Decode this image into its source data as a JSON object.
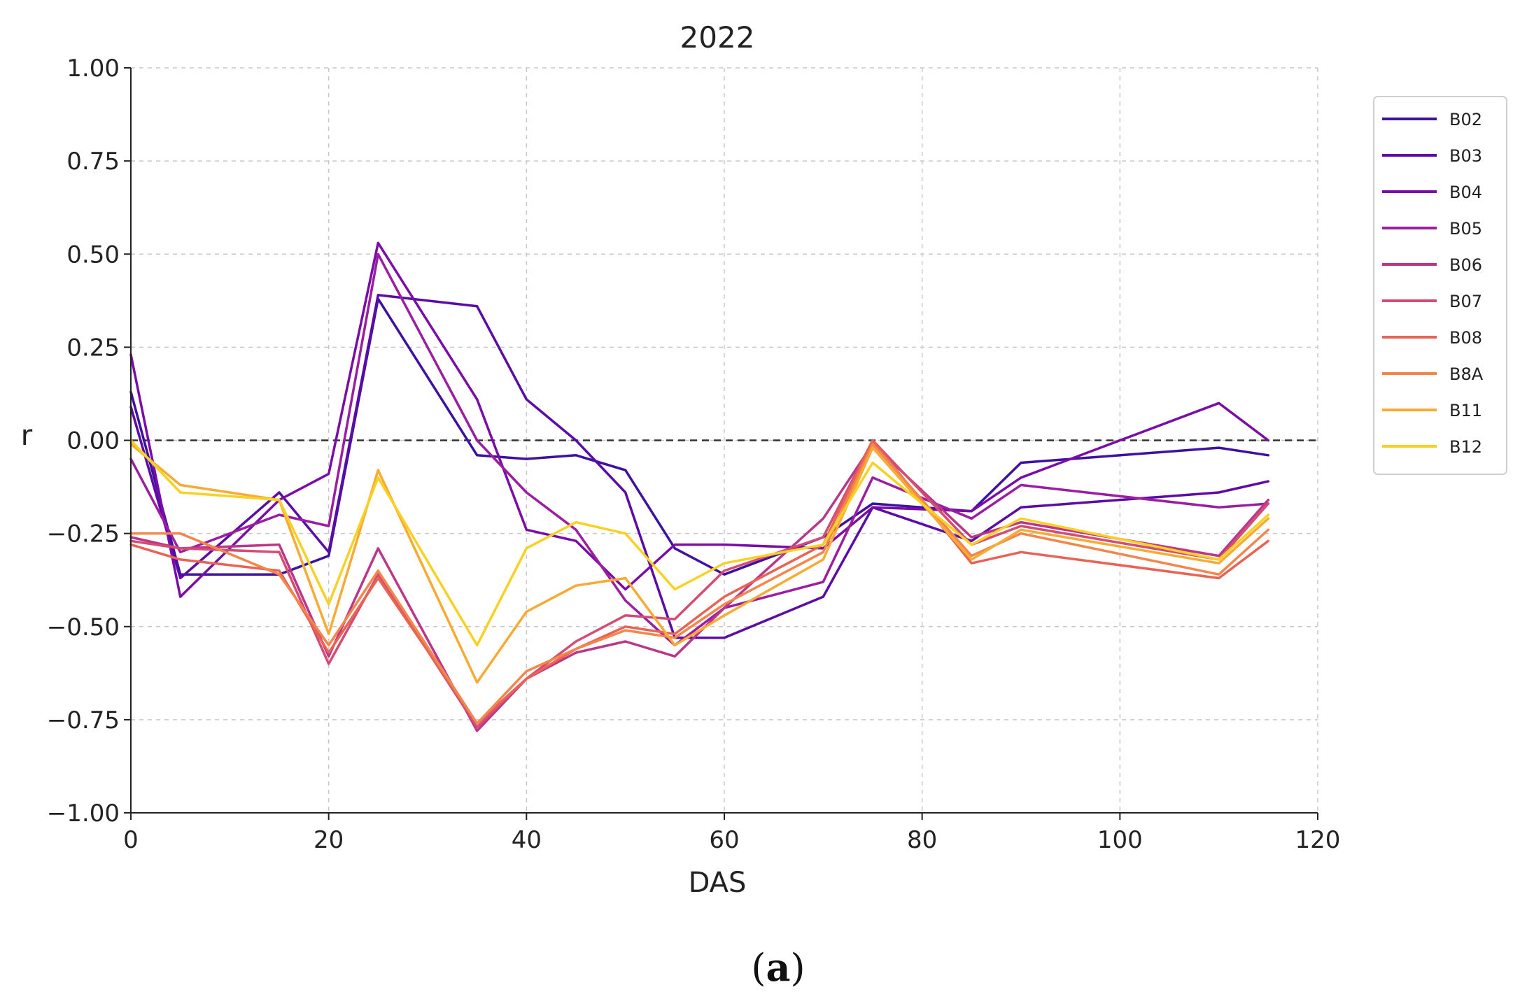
{
  "chart_data": {
    "type": "line",
    "title": "2022",
    "xlabel": "DAS",
    "ylabel": "r",
    "xlim": [
      0,
      120
    ],
    "ylim": [
      -1.0,
      1.0
    ],
    "xticks": [
      "0",
      "20",
      "40",
      "60",
      "80",
      "100",
      "120"
    ],
    "yticks": [
      "−1.00",
      "−0.75",
      "−0.50",
      "−0.25",
      "0.00",
      "0.25",
      "0.50",
      "0.75",
      "1.00"
    ],
    "xtick_values": [
      0,
      20,
      40,
      60,
      80,
      100,
      120
    ],
    "ytick_values": [
      -1.0,
      -0.75,
      -0.5,
      -0.25,
      0.0,
      0.25,
      0.5,
      0.75,
      1.0
    ],
    "grid": true,
    "reference_line_y": 0.0,
    "legend_position": "upper-right-outside",
    "x": [
      0,
      5,
      15,
      20,
      25,
      35,
      40,
      45,
      50,
      55,
      60,
      70,
      75,
      85,
      90,
      110,
      115
    ],
    "series": [
      {
        "name": "B02",
        "color": "#3d12a0",
        "values": [
          0.13,
          -0.36,
          -0.36,
          -0.31,
          0.38,
          -0.04,
          -0.05,
          -0.04,
          -0.08,
          -0.29,
          -0.36,
          -0.26,
          -0.17,
          -0.19,
          -0.06,
          -0.02,
          -0.04
        ]
      },
      {
        "name": "B03",
        "color": "#5c0ca6",
        "values": [
          0.09,
          -0.37,
          -0.14,
          -0.3,
          0.39,
          0.36,
          0.11,
          0.0,
          -0.14,
          -0.53,
          -0.53,
          -0.42,
          -0.18,
          -0.27,
          -0.18,
          -0.14,
          -0.11
        ]
      },
      {
        "name": "B04",
        "color": "#7a0da7",
        "values": [
          0.23,
          -0.42,
          -0.16,
          -0.09,
          0.53,
          0.11,
          -0.24,
          -0.27,
          -0.4,
          -0.28,
          -0.28,
          -0.29,
          -0.18,
          -0.19,
          -0.1,
          0.1,
          0.0
        ]
      },
      {
        "name": "B05",
        "color": "#9c1ea0",
        "values": [
          -0.05,
          -0.3,
          -0.2,
          -0.23,
          0.5,
          0.0,
          -0.14,
          -0.24,
          -0.43,
          -0.55,
          -0.45,
          -0.38,
          -0.1,
          -0.21,
          -0.12,
          -0.18,
          -0.17
        ]
      },
      {
        "name": "B06",
        "color": "#bb3688",
        "values": [
          -0.26,
          -0.29,
          -0.28,
          -0.58,
          -0.29,
          -0.78,
          -0.64,
          -0.57,
          -0.54,
          -0.58,
          -0.45,
          -0.21,
          -0.01,
          -0.26,
          -0.22,
          -0.31,
          -0.16
        ]
      },
      {
        "name": "B07",
        "color": "#d44c74",
        "values": [
          -0.27,
          -0.29,
          -0.3,
          -0.6,
          -0.36,
          -0.77,
          -0.64,
          -0.54,
          -0.47,
          -0.48,
          -0.35,
          -0.26,
          0.0,
          -0.28,
          -0.23,
          -0.32,
          -0.17
        ]
      },
      {
        "name": "B08",
        "color": "#e96355",
        "values": [
          -0.28,
          -0.32,
          -0.35,
          -0.57,
          -0.37,
          -0.76,
          -0.64,
          -0.56,
          -0.5,
          -0.52,
          -0.42,
          -0.28,
          0.0,
          -0.33,
          -0.3,
          -0.37,
          -0.27
        ]
      },
      {
        "name": "B8A",
        "color": "#f3864a",
        "values": [
          -0.25,
          -0.25,
          -0.36,
          -0.55,
          -0.35,
          -0.76,
          -0.62,
          -0.56,
          -0.51,
          -0.53,
          -0.44,
          -0.3,
          -0.01,
          -0.31,
          -0.25,
          -0.36,
          -0.24
        ]
      },
      {
        "name": "B11",
        "color": "#f7ab33",
        "values": [
          -0.01,
          -0.12,
          -0.16,
          -0.52,
          -0.08,
          -0.65,
          -0.46,
          -0.39,
          -0.37,
          -0.55,
          -0.47,
          -0.32,
          -0.02,
          -0.32,
          -0.24,
          -0.33,
          -0.21
        ]
      },
      {
        "name": "B12",
        "color": "#f9d124",
        "values": [
          0.0,
          -0.14,
          -0.16,
          -0.44,
          -0.1,
          -0.55,
          -0.29,
          -0.22,
          -0.25,
          -0.4,
          -0.33,
          -0.28,
          -0.06,
          -0.28,
          -0.21,
          -0.32,
          -0.2
        ]
      }
    ]
  },
  "caption": {
    "open": "(",
    "letter": "a",
    "close": ")"
  },
  "colors": {
    "grid": "#c8c8c8",
    "axis": "#222222",
    "reference_line": "#333333",
    "legend_border": "#cfcfcf"
  }
}
